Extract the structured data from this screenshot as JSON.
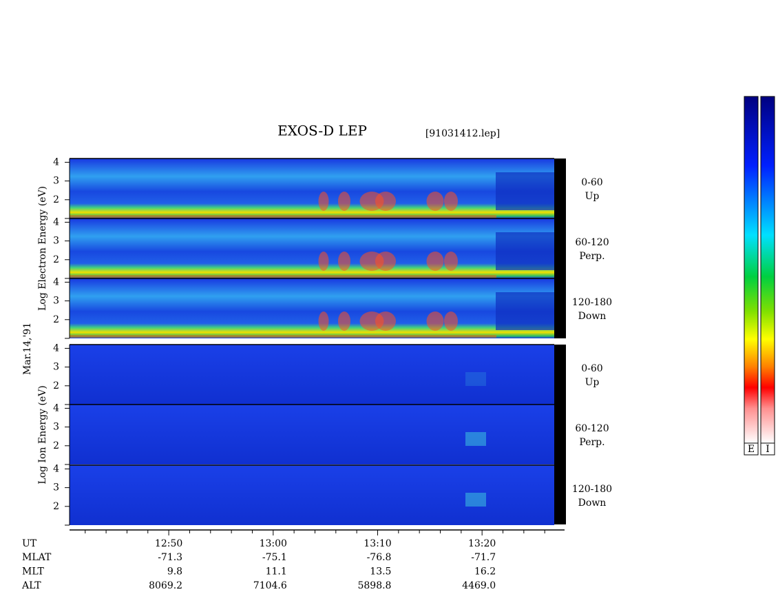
{
  "chart_data": {
    "type": "spectrogram",
    "title": "EXOS-D LEP",
    "file_label": "[91031412.lep]",
    "date_label": "Mar.14,'91",
    "groups": [
      {
        "axis_label": "Log  Electron  Energy (eV)",
        "colorbar_label": "E",
        "panels": [
          {
            "angle": "0-60",
            "direction": "Up"
          },
          {
            "angle": "60-120",
            "direction": "Perp."
          },
          {
            "angle": "120-180",
            "direction": "Down"
          }
        ]
      },
      {
        "axis_label": "Log  Ion  Energy (eV)",
        "colorbar_label": "I",
        "panels": [
          {
            "angle": "0-60",
            "direction": "Up"
          },
          {
            "angle": "60-120",
            "direction": "Perp."
          },
          {
            "angle": "120-180",
            "direction": "Down"
          }
        ]
      }
    ],
    "ylim": [
      1,
      4.2
    ],
    "yticks": [
      2,
      3,
      4
    ],
    "y_minor_ticks": [
      1
    ],
    "xlim": [
      760.5,
      807.9
    ],
    "xticks": [
      {
        "value": 770,
        "label": "12:50"
      },
      {
        "value": 780,
        "label": "13:00"
      },
      {
        "value": 790,
        "label": "13:10"
      },
      {
        "value": 800,
        "label": "13:20"
      }
    ],
    "x_minor_ticks": [
      762,
      764,
      766,
      768,
      772,
      774,
      776,
      778,
      782,
      784,
      786,
      788,
      792,
      794,
      796,
      798,
      802,
      804,
      806
    ],
    "x_row_label": "UT",
    "orbit_rows": [
      {
        "label": "MLAT",
        "values": [
          "-71.3",
          "-75.1",
          "-76.8",
          "-71.7"
        ]
      },
      {
        "label": "MLT",
        "values": [
          "9.8",
          "11.1",
          "13.5",
          "16.2"
        ]
      },
      {
        "label": "ALT",
        "values": [
          "8069.2",
          "7104.6",
          "5898.8",
          "4469.0"
        ]
      }
    ]
  }
}
